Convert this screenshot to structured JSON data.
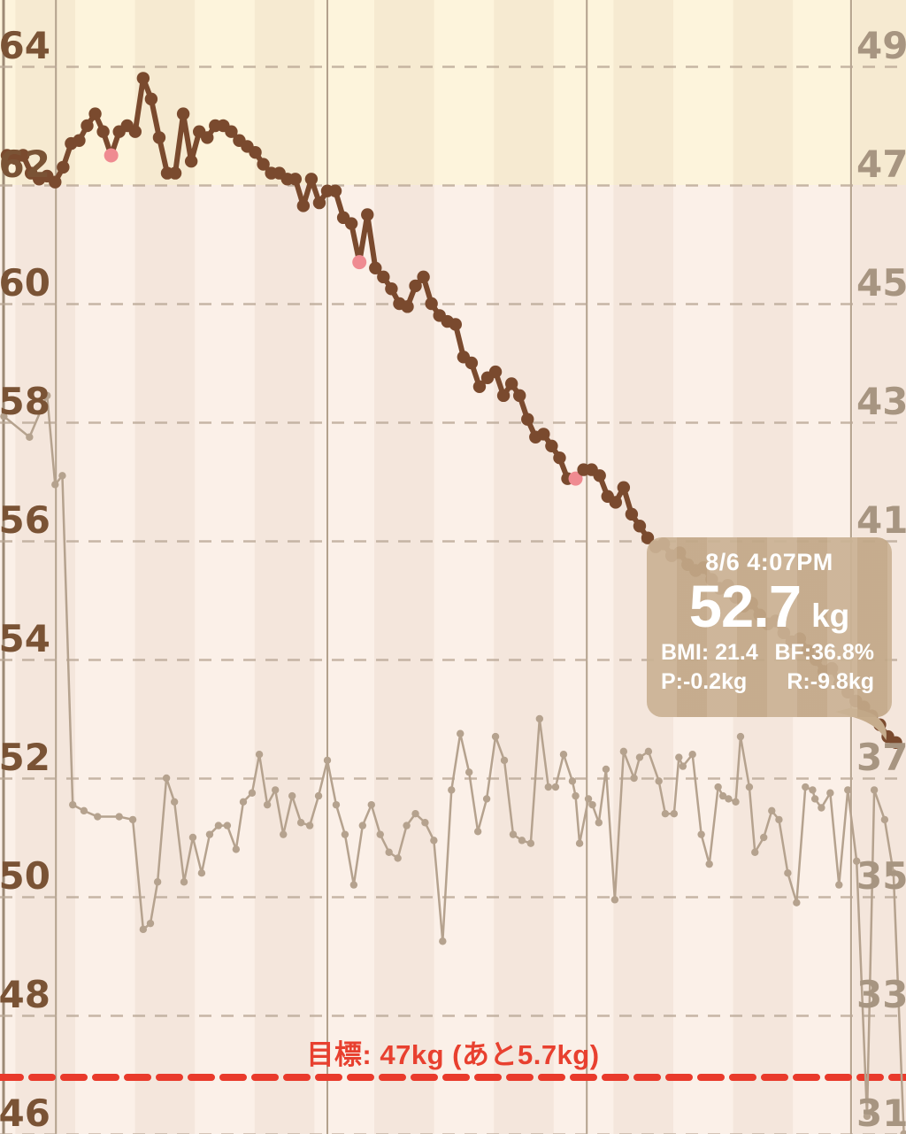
{
  "axes": {
    "left": {
      "unit": "kg",
      "tick_values": [
        64,
        62,
        60,
        58,
        56,
        54,
        52,
        50,
        48,
        46
      ],
      "color": "#7a5335"
    },
    "right": {
      "unit": "%",
      "tick_values": [
        49,
        47,
        45,
        43,
        41,
        37,
        35,
        33,
        31
      ],
      "color": "#a79581"
    }
  },
  "goal": {
    "label": "目標: 47kg (あと5.7kg)",
    "value_kg": 47,
    "line_color": "#e93a2b",
    "text_color": "#e8402f"
  },
  "tooltip": {
    "datetime": "8/6 4:07PM",
    "value": "52.7",
    "unit": "kg",
    "bmi": "BMI: 21.4",
    "body_fat": "BF:36.8%",
    "prev_diff": "P:-0.2kg",
    "total_diff": "R:-9.8kg"
  },
  "chart_data": {
    "type": "line",
    "x_unit": "day_index",
    "left_axis": {
      "label": "weight (kg)",
      "min": 46,
      "max": 64,
      "gridline_step": 2
    },
    "right_axis": {
      "label": "body fat (%)",
      "min": 31,
      "max": 49,
      "gridline_step": 2
    },
    "month_gridlines_day_index": [
      -0.4,
      6.1,
      40,
      72.4,
      105.4
    ],
    "goal_line_kg": 47,
    "series": [
      {
        "name": "weight_kg",
        "color": "#7a4a2e",
        "highlight_color": "#ef8b91",
        "highlight_indices": [
          13,
          44,
          71
        ],
        "selected_index": 110,
        "values": [
          62.5,
          62.45,
          62.5,
          62.2,
          62.1,
          62.15,
          62.05,
          62.3,
          62.7,
          62.75,
          63.0,
          63.2,
          62.9,
          62.5,
          62.9,
          63.0,
          62.9,
          63.8,
          63.45,
          62.8,
          62.2,
          62.2,
          63.2,
          62.4,
          62.9,
          62.8,
          63.0,
          63.0,
          62.9,
          62.75,
          62.65,
          62.55,
          62.35,
          62.2,
          62.2,
          62.1,
          62.1,
          61.65,
          62.1,
          61.7,
          61.9,
          61.9,
          61.45,
          61.35,
          60.7,
          61.5,
          60.6,
          60.45,
          60.25,
          60.0,
          59.95,
          60.3,
          60.45,
          60.0,
          59.8,
          59.7,
          59.65,
          59.1,
          59.0,
          58.6,
          58.75,
          58.85,
          58.45,
          58.65,
          58.45,
          58.05,
          57.75,
          57.8,
          57.6,
          57.4,
          57.05,
          57.05,
          57.2,
          57.2,
          57.1,
          56.75,
          56.65,
          56.9,
          56.45,
          56.25,
          56.05,
          55.9,
          55.95,
          55.75,
          55.8,
          55.6,
          55.5,
          55.55,
          55.35,
          55.2,
          55.25,
          55.05,
          54.9,
          54.95,
          54.75,
          54.6,
          54.65,
          54.45,
          54.3,
          54.35,
          54.15,
          54.0,
          53.8,
          53.85,
          53.6,
          53.45,
          53.3,
          53.2,
          53.05,
          52.9,
          52.7,
          52.6
        ]
      },
      {
        "name": "body_fat_pct",
        "color": "#b5a28e",
        "points": [
          [
            -0.4,
            43.1
          ],
          [
            2.8,
            42.75
          ],
          [
            5.0,
            43.45
          ],
          [
            6.0,
            41.95
          ],
          [
            6.9,
            42.1
          ],
          [
            8.2,
            36.55
          ],
          [
            9.6,
            36.45
          ],
          [
            11.3,
            36.35
          ],
          [
            14.0,
            36.35
          ],
          [
            15.7,
            36.3
          ],
          [
            17.0,
            34.45
          ],
          [
            17.9,
            34.55
          ],
          [
            18.8,
            35.25
          ],
          [
            19.9,
            37.0
          ],
          [
            20.9,
            36.6
          ],
          [
            22.1,
            35.25
          ],
          [
            23.2,
            36.0
          ],
          [
            24.3,
            35.4
          ],
          [
            25.3,
            36.05
          ],
          [
            26.4,
            36.2
          ],
          [
            27.5,
            36.2
          ],
          [
            28.6,
            35.8
          ],
          [
            29.5,
            36.6
          ],
          [
            30.6,
            36.75
          ],
          [
            31.5,
            37.4
          ],
          [
            32.5,
            36.55
          ],
          [
            33.5,
            36.8
          ],
          [
            34.5,
            36.05
          ],
          [
            35.6,
            36.7
          ],
          [
            36.7,
            36.25
          ],
          [
            37.8,
            36.2
          ],
          [
            38.9,
            36.7
          ],
          [
            40.0,
            37.3
          ],
          [
            41.1,
            36.55
          ],
          [
            42.2,
            36.05
          ],
          [
            43.3,
            35.2
          ],
          [
            44.4,
            36.2
          ],
          [
            45.5,
            36.55
          ],
          [
            46.6,
            36.05
          ],
          [
            47.7,
            35.75
          ],
          [
            48.8,
            35.65
          ],
          [
            49.9,
            36.2
          ],
          [
            51.0,
            36.4
          ],
          [
            52.2,
            36.25
          ],
          [
            53.3,
            35.95
          ],
          [
            54.4,
            34.25
          ],
          [
            55.5,
            36.8
          ],
          [
            56.6,
            37.75
          ],
          [
            57.7,
            37.1
          ],
          [
            58.8,
            36.1
          ],
          [
            59.9,
            36.65
          ],
          [
            61.0,
            37.7
          ],
          [
            62.1,
            37.3
          ],
          [
            63.2,
            36.05
          ],
          [
            64.3,
            35.95
          ],
          [
            65.4,
            35.9
          ],
          [
            66.5,
            38.0
          ],
          [
            67.6,
            36.85
          ],
          [
            68.5,
            36.85
          ],
          [
            69.5,
            37.4
          ],
          [
            70.6,
            36.95
          ],
          [
            71.0,
            36.7
          ],
          [
            71.5,
            35.9
          ],
          [
            72.6,
            36.65
          ],
          [
            73.1,
            36.55
          ],
          [
            73.9,
            36.25
          ],
          [
            74.8,
            37.15
          ],
          [
            75.9,
            34.95
          ],
          [
            77.0,
            37.45
          ],
          [
            78.3,
            37.0
          ],
          [
            79.0,
            37.35
          ],
          [
            80.1,
            37.45
          ],
          [
            81.4,
            36.95
          ],
          [
            82.2,
            36.4
          ],
          [
            83.3,
            36.4
          ],
          [
            83.9,
            37.35
          ],
          [
            84.4,
            37.2
          ],
          [
            85.6,
            37.4
          ],
          [
            86.7,
            36.05
          ],
          [
            87.7,
            35.55
          ],
          [
            88.8,
            36.85
          ],
          [
            89.4,
            36.7
          ],
          [
            90.1,
            36.65
          ],
          [
            91.0,
            36.6
          ],
          [
            91.6,
            37.7
          ],
          [
            92.7,
            36.85
          ],
          [
            93.4,
            35.75
          ],
          [
            94.5,
            36.0
          ],
          [
            95.5,
            36.45
          ],
          [
            96.4,
            36.3
          ],
          [
            97.5,
            35.4
          ],
          [
            98.6,
            34.9
          ],
          [
            99.7,
            36.85
          ],
          [
            100.6,
            36.8
          ],
          [
            100.9,
            36.65
          ],
          [
            101.7,
            36.5
          ],
          [
            102.8,
            36.75
          ],
          [
            103.9,
            35.2
          ],
          [
            105.0,
            36.8
          ],
          [
            106.1,
            35.6
          ],
          [
            107.4,
            31.3
          ],
          [
            108.3,
            36.8
          ],
          [
            109.6,
            36.3
          ],
          [
            110.7,
            35.4
          ],
          [
            112.0,
            31.0
          ]
        ]
      }
    ]
  },
  "style_colors": {
    "zone_top": "#fdf4dc",
    "zone_bottom": "#fbf0e8",
    "stripe_overlay": "rgba(176,128,96,0.09)",
    "h_gridline": "#b9a795",
    "v_monthline": "#b3a18c",
    "v_edgeline": "#9d8a75",
    "tooltip_bg": "#c6ac8c"
  }
}
